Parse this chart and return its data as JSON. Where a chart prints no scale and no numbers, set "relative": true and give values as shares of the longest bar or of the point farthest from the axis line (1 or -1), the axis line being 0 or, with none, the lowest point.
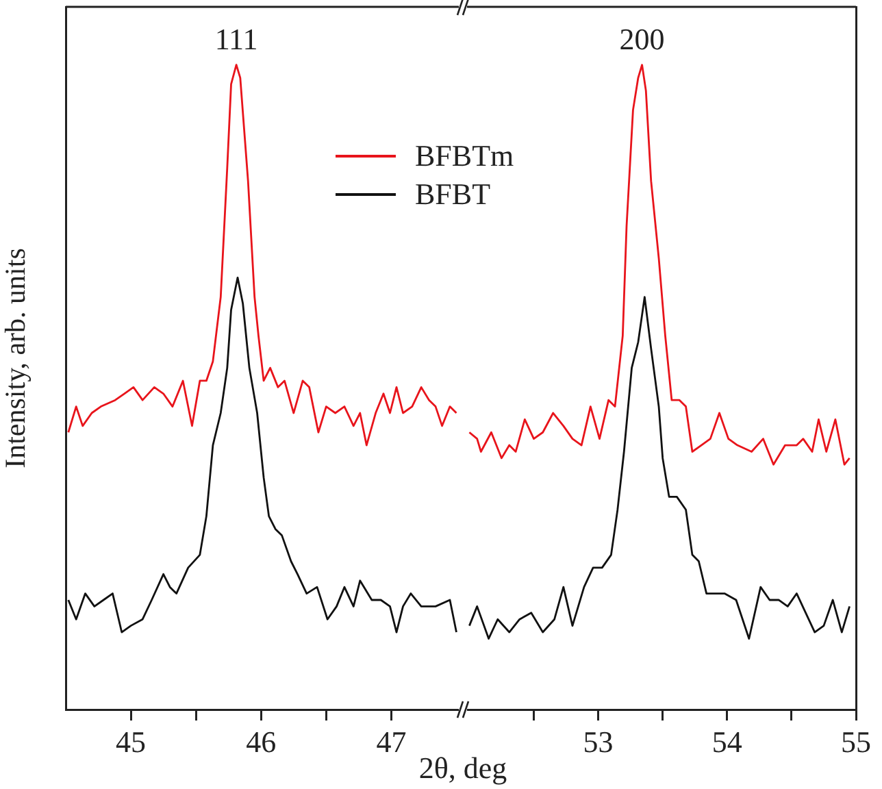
{
  "chart_data": [
    {
      "type": "line",
      "xlabel": "2θ, deg",
      "ylabel": "Intensity, arb. units",
      "relative": true,
      "legend": "top",
      "marker": "none",
      "xlim": [
        44.5,
        47.55
      ],
      "xticks": [
        45,
        {
          "value": 45.5,
          "label": null
        },
        46,
        {
          "value": 46.5,
          "label": null
        },
        47
      ],
      "annotations": [
        {
          "text": "111",
          "x": 45.81,
          "y": 1
        }
      ],
      "series": [
        {
          "name": "BFBTm",
          "color": "#e8141b",
          "x": [
            44.52,
            44.58,
            44.63,
            44.7,
            44.77,
            44.88,
            44.95,
            45.02,
            45.09,
            45.18,
            45.25,
            45.32,
            45.4,
            45.47,
            45.53,
            45.58,
            45.63,
            45.69,
            45.74,
            45.77,
            45.81,
            45.84,
            45.9,
            45.95,
            45.98,
            46.02,
            46.07,
            46.13,
            46.18,
            46.25,
            46.32,
            46.37,
            46.44,
            46.5,
            46.57,
            46.64,
            46.71,
            46.76,
            46.81,
            46.88,
            46.94,
            46.99,
            47.04,
            47.09,
            47.16,
            47.23,
            47.29,
            47.34,
            47.39,
            47.45,
            47.5
          ],
          "values": [
            0.43,
            0.47,
            0.44,
            0.46,
            0.47,
            0.48,
            0.49,
            0.5,
            0.48,
            0.5,
            0.49,
            0.47,
            0.51,
            0.44,
            0.51,
            0.51,
            0.54,
            0.64,
            0.84,
            0.97,
            1,
            0.98,
            0.82,
            0.64,
            0.58,
            0.51,
            0.53,
            0.5,
            0.51,
            0.46,
            0.51,
            0.5,
            0.43,
            0.47,
            0.46,
            0.47,
            0.44,
            0.46,
            0.41,
            0.46,
            0.49,
            0.46,
            0.5,
            0.46,
            0.47,
            0.5,
            0.48,
            0.47,
            0.44,
            0.47,
            0.46
          ]
        },
        {
          "name": "BFBT",
          "color": "#111111",
          "x": [
            44.52,
            44.58,
            44.65,
            44.72,
            44.79,
            44.86,
            44.93,
            45.0,
            45.09,
            45.16,
            45.25,
            45.3,
            45.35,
            45.44,
            45.53,
            45.58,
            45.63,
            45.69,
            45.74,
            45.77,
            45.82,
            45.86,
            45.91,
            45.97,
            46.02,
            46.06,
            46.11,
            46.16,
            46.23,
            46.28,
            46.35,
            46.43,
            46.51,
            46.58,
            46.64,
            46.71,
            46.76,
            46.85,
            46.92,
            46.99,
            47.04,
            47.09,
            47.15,
            47.23,
            47.34,
            47.45,
            47.5
          ],
          "values": [
            0.17,
            0.14,
            0.18,
            0.16,
            0.17,
            0.18,
            0.12,
            0.13,
            0.14,
            0.17,
            0.21,
            0.19,
            0.18,
            0.22,
            0.24,
            0.3,
            0.41,
            0.46,
            0.53,
            0.62,
            0.67,
            0.63,
            0.53,
            0.46,
            0.36,
            0.3,
            0.28,
            0.27,
            0.23,
            0.21,
            0.18,
            0.19,
            0.14,
            0.16,
            0.19,
            0.16,
            0.2,
            0.17,
            0.17,
            0.16,
            0.12,
            0.16,
            0.18,
            0.16,
            0.16,
            0.17,
            0.12
          ]
        }
      ]
    },
    {
      "type": "line",
      "relative": true,
      "marker": "none",
      "xlim": [
        51.95,
        55
      ],
      "xticks": [
        {
          "value": 52.5,
          "label": null
        },
        53,
        {
          "value": 53.5,
          "label": null
        },
        54,
        {
          "value": 54.5,
          "label": null
        },
        55
      ],
      "annotations": [
        {
          "text": "200",
          "x": 53.34,
          "y": 1
        }
      ],
      "series": [
        {
          "color": "#e8141b",
          "x": [
            52.0,
            52.06,
            52.09,
            52.17,
            52.25,
            52.31,
            52.36,
            52.43,
            52.5,
            52.57,
            52.65,
            52.73,
            52.8,
            52.87,
            52.94,
            53.01,
            53.08,
            53.13,
            53.19,
            53.22,
            53.27,
            53.31,
            53.34,
            53.37,
            53.41,
            53.47,
            53.52,
            53.57,
            53.63,
            53.68,
            53.73,
            53.8,
            53.87,
            53.94,
            54.01,
            54.08,
            54.19,
            54.28,
            54.36,
            54.45,
            54.54,
            54.59,
            54.66,
            54.71,
            54.77,
            54.84,
            54.91,
            54.95
          ],
          "values": [
            0.43,
            0.42,
            0.4,
            0.43,
            0.39,
            0.41,
            0.4,
            0.45,
            0.42,
            0.43,
            0.46,
            0.44,
            0.42,
            0.41,
            0.47,
            0.42,
            0.48,
            0.47,
            0.58,
            0.75,
            0.93,
            0.98,
            1,
            0.96,
            0.82,
            0.7,
            0.58,
            0.48,
            0.48,
            0.47,
            0.4,
            0.41,
            0.42,
            0.46,
            0.42,
            0.41,
            0.4,
            0.42,
            0.38,
            0.41,
            0.41,
            0.42,
            0.4,
            0.45,
            0.4,
            0.45,
            0.38,
            0.39
          ]
        },
        {
          "color": "#111111",
          "x": [
            52.0,
            52.06,
            52.15,
            52.22,
            52.31,
            52.39,
            52.48,
            52.57,
            52.66,
            52.73,
            52.8,
            52.89,
            52.96,
            53.03,
            53.1,
            53.15,
            53.2,
            53.26,
            53.31,
            53.36,
            53.41,
            53.47,
            53.5,
            53.55,
            53.61,
            53.68,
            53.73,
            53.78,
            53.84,
            53.91,
            53.98,
            54.07,
            54.17,
            54.26,
            54.33,
            54.4,
            54.47,
            54.54,
            54.61,
            54.68,
            54.75,
            54.82,
            54.89,
            54.95
          ],
          "values": [
            0.13,
            0.16,
            0.11,
            0.14,
            0.12,
            0.14,
            0.15,
            0.12,
            0.14,
            0.19,
            0.13,
            0.19,
            0.22,
            0.22,
            0.24,
            0.31,
            0.4,
            0.53,
            0.57,
            0.64,
            0.56,
            0.47,
            0.39,
            0.33,
            0.33,
            0.31,
            0.24,
            0.23,
            0.18,
            0.18,
            0.18,
            0.17,
            0.11,
            0.19,
            0.17,
            0.17,
            0.16,
            0.18,
            0.15,
            0.12,
            0.13,
            0.17,
            0.12,
            0.16
          ]
        }
      ]
    }
  ]
}
